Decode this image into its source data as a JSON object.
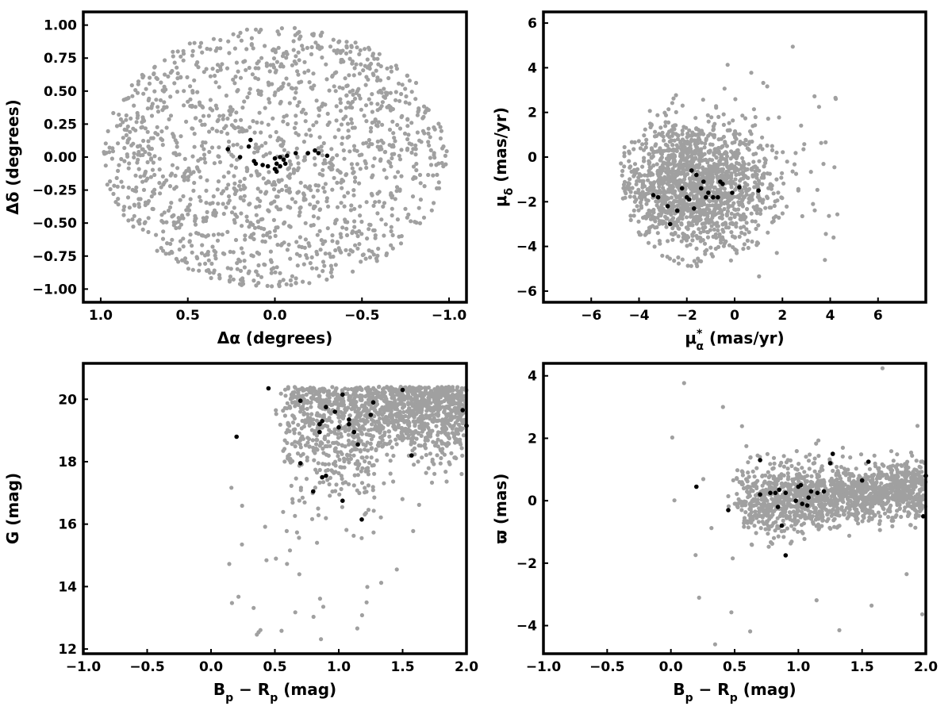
{
  "chart_data": [
    {
      "type": "scatter",
      "title": "",
      "xlabel": "Δα (degrees)",
      "ylabel": "Δδ (degrees)",
      "xlim": [
        1.1,
        -1.1
      ],
      "ylim": [
        -1.1,
        1.1
      ],
      "x_reversed": true,
      "xticks": [
        1.0,
        0.5,
        0.0,
        -0.5,
        -1.0
      ],
      "xtick_labels": [
        "1.0",
        "0.5",
        "0.0",
        "−0.5",
        "−1.0"
      ],
      "yticks": [
        1.0,
        0.75,
        0.5,
        0.25,
        0.0,
        -0.25,
        -0.5,
        -0.75,
        -1.0
      ],
      "ytick_labels": [
        "1.00",
        "0.75",
        "0.50",
        "0.25",
        "0.00",
        "−0.25",
        "−0.50",
        "−0.75",
        "−1.00"
      ],
      "grid": false,
      "background_population": {
        "color": "#a0a0a0",
        "description_shown": "uniform field stars within a circle of radius 1 degree",
        "approx_count": 1500
      },
      "members": {
        "color": "#000000",
        "points": [
          [
            0.27,
            0.06
          ],
          [
            0.2,
            0.0
          ],
          [
            0.15,
            0.08
          ],
          [
            0.14,
            0.13
          ],
          [
            0.12,
            -0.03
          ],
          [
            0.11,
            -0.05
          ],
          [
            0.07,
            -0.06
          ],
          [
            0.04,
            -0.07
          ],
          [
            0.0,
            -0.01
          ],
          [
            -0.01,
            -0.05
          ],
          [
            -0.01,
            -0.11
          ],
          [
            0.0,
            -0.09
          ],
          [
            -0.03,
            -0.07
          ],
          [
            -0.03,
            0.0
          ],
          [
            -0.05,
            -0.02
          ],
          [
            -0.06,
            -0.05
          ],
          [
            -0.07,
            0.01
          ],
          [
            -0.12,
            0.03
          ],
          [
            -0.19,
            0.03
          ],
          [
            -0.23,
            0.05
          ],
          [
            -0.25,
            0.03
          ],
          [
            -0.3,
            0.01
          ]
        ]
      }
    },
    {
      "type": "scatter",
      "title": "",
      "xlabel": "μ*α (mas/yr)",
      "ylabel": "μδ (mas/yr)",
      "xlim": [
        -8,
        8
      ],
      "ylim": [
        -6.5,
        6.5
      ],
      "xticks": [
        -6,
        -4,
        -2,
        0,
        2,
        4,
        6
      ],
      "xtick_labels": [
        "−6",
        "−4",
        "−2",
        "0",
        "2",
        "4",
        "6"
      ],
      "yticks": [
        6,
        4,
        2,
        0,
        -2,
        -4,
        -6
      ],
      "ytick_labels": [
        "6",
        "4",
        "2",
        "0",
        "−2",
        "−4",
        "−6"
      ],
      "grid": false,
      "background_population": {
        "color": "#a0a0a0",
        "approx_count": 1500
      },
      "members": {
        "color": "#000000",
        "points": [
          [
            -3.4,
            -1.7
          ],
          [
            -3.2,
            -1.8
          ],
          [
            -2.8,
            -2.2
          ],
          [
            -2.7,
            -3.0
          ],
          [
            -2.4,
            -2.4
          ],
          [
            -2.2,
            -1.4
          ],
          [
            -2.0,
            -1.8
          ],
          [
            -1.9,
            -1.9
          ],
          [
            -1.8,
            -0.6
          ],
          [
            -1.7,
            -2.3
          ],
          [
            -1.6,
            -0.8
          ],
          [
            -1.4,
            -1.4
          ],
          [
            -1.3,
            -1.1
          ],
          [
            -1.2,
            -1.8
          ],
          [
            -1.1,
            -1.6
          ],
          [
            -0.9,
            -1.8
          ],
          [
            -0.6,
            -1.1
          ],
          [
            -0.5,
            -1.2
          ],
          [
            -0.7,
            -1.8
          ],
          [
            -0.1,
            -1.6
          ],
          [
            0.2,
            -1.35
          ],
          [
            1.0,
            -1.5
          ]
        ]
      }
    },
    {
      "type": "scatter",
      "title": "",
      "xlabel": "Bp − Rp (mag)",
      "ylabel": "G (mag)",
      "xlim": [
        -1.0,
        2.0
      ],
      "ylim": [
        11.85,
        21.15
      ],
      "xticks": [
        -1.0,
        -0.5,
        0.0,
        0.5,
        1.0,
        1.5,
        2.0
      ],
      "xtick_labels": [
        "−1.0",
        "−0.5",
        "0.0",
        "0.5",
        "1.0",
        "1.5",
        "2.0"
      ],
      "yticks": [
        20,
        18,
        16,
        14,
        12
      ],
      "ytick_labels": [
        "20",
        "18",
        "16",
        "14",
        "12"
      ],
      "grid": false,
      "background_population": {
        "color": "#a0a0a0",
        "approx_count": 1500
      },
      "members": {
        "color": "#000000",
        "points": [
          [
            0.2,
            18.8
          ],
          [
            0.45,
            20.35
          ],
          [
            0.7,
            19.95
          ],
          [
            0.7,
            17.95
          ],
          [
            0.8,
            17.05
          ],
          [
            0.85,
            19.2
          ],
          [
            0.85,
            18.95
          ],
          [
            0.87,
            19.3
          ],
          [
            0.87,
            17.5
          ],
          [
            0.9,
            17.55
          ],
          [
            0.9,
            19.75
          ],
          [
            0.97,
            19.6
          ],
          [
            1.0,
            19.1
          ],
          [
            1.03,
            20.15
          ],
          [
            1.03,
            16.75
          ],
          [
            1.08,
            19.2
          ],
          [
            1.08,
            19.35
          ],
          [
            1.12,
            18.95
          ],
          [
            1.15,
            18.55
          ],
          [
            1.18,
            16.15
          ],
          [
            1.25,
            19.5
          ],
          [
            1.27,
            19.9
          ],
          [
            1.5,
            20.3
          ],
          [
            1.57,
            18.2
          ],
          [
            1.97,
            19.65
          ],
          [
            2.0,
            19.15
          ]
        ]
      }
    },
    {
      "type": "scatter",
      "title": "",
      "xlabel": "Bp − Rp (mag)",
      "ylabel": "ϖ (mas)",
      "xlim": [
        -1.0,
        2.0
      ],
      "ylim": [
        -4.9,
        4.4
      ],
      "xticks": [
        -1.0,
        -0.5,
        0.0,
        0.5,
        1.0,
        1.5,
        2.0
      ],
      "xtick_labels": [
        "−1.0",
        "−0.5",
        "0.0",
        "0.5",
        "1.0",
        "1.5",
        "2.0"
      ],
      "yticks": [
        4,
        2,
        0,
        -2,
        -4
      ],
      "ytick_labels": [
        "4",
        "2",
        "0",
        "−2",
        "−4"
      ],
      "grid": false,
      "background_population": {
        "color": "#a0a0a0",
        "approx_count": 1500
      },
      "members": {
        "color": "#000000",
        "points": [
          [
            0.2,
            0.45
          ],
          [
            0.45,
            -0.3
          ],
          [
            0.7,
            1.3
          ],
          [
            0.7,
            0.2
          ],
          [
            0.78,
            0.25
          ],
          [
            0.82,
            0.25
          ],
          [
            0.84,
            -0.2
          ],
          [
            0.85,
            0.35
          ],
          [
            0.87,
            -0.8
          ],
          [
            0.9,
            0.25
          ],
          [
            0.9,
            -1.75
          ],
          [
            0.98,
            0.0
          ],
          [
            1.0,
            0.45
          ],
          [
            1.02,
            0.5
          ],
          [
            1.03,
            -0.1
          ],
          [
            1.07,
            -0.15
          ],
          [
            1.08,
            0.1
          ],
          [
            1.1,
            0.3
          ],
          [
            1.15,
            0.25
          ],
          [
            1.2,
            0.3
          ],
          [
            1.25,
            1.2
          ],
          [
            1.27,
            1.5
          ],
          [
            1.55,
            1.25
          ],
          [
            1.5,
            0.65
          ],
          [
            1.98,
            -0.5
          ],
          [
            2.0,
            0.8
          ]
        ]
      }
    }
  ]
}
